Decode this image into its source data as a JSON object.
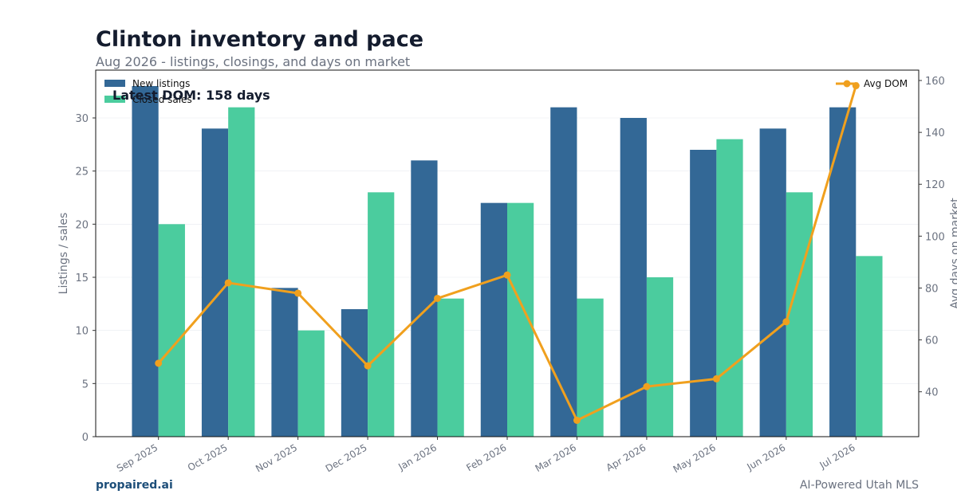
{
  "header": {
    "title": "Clinton inventory and pace",
    "subtitle": "Aug 2026 - listings, closings, and days on market"
  },
  "footer": {
    "brand": "propaired.ai",
    "tagline": "AI-Powered Utah MLS"
  },
  "colors": {
    "new_listings": "#336896",
    "closed_sales": "#4bcc9e",
    "avg_dom": "#f0a01e",
    "title": "#141c2e",
    "muted": "#6b7280"
  },
  "chart_data": {
    "type": "bar",
    "categories": [
      "Sep 2025",
      "Oct 2025",
      "Nov 2025",
      "Dec 2025",
      "Jan 2026",
      "Feb 2026",
      "Mar 2026",
      "Apr 2026",
      "May 2026",
      "Jun 2026",
      "Jul 2026"
    ],
    "series": [
      {
        "name": "New listings",
        "type": "bar",
        "axis": "left",
        "values": [
          33,
          29,
          14,
          12,
          26,
          22,
          31,
          30,
          27,
          29,
          31
        ]
      },
      {
        "name": "Closed sales",
        "type": "bar",
        "axis": "left",
        "values": [
          20,
          31,
          10,
          23,
          13,
          22,
          13,
          15,
          28,
          23,
          17
        ]
      },
      {
        "name": "Avg DOM",
        "type": "line",
        "axis": "right",
        "values": [
          51,
          82,
          78,
          50,
          76,
          85,
          29,
          42,
          45,
          67,
          158
        ]
      }
    ],
    "ylabel": "Listings / sales",
    "ylabel_right": "Avg days on market",
    "ylim": [
      0,
      34.5
    ],
    "ylim_right": [
      22.7,
      164
    ],
    "yticks": [
      0,
      5,
      10,
      15,
      20,
      25,
      30
    ],
    "yticks_right": [
      40,
      60,
      80,
      100,
      120,
      140,
      160
    ],
    "grid": true,
    "legend_left_placement": "top-left",
    "legend_right_placement": "top-right",
    "annotation": "Latest DOM: 158 days"
  }
}
